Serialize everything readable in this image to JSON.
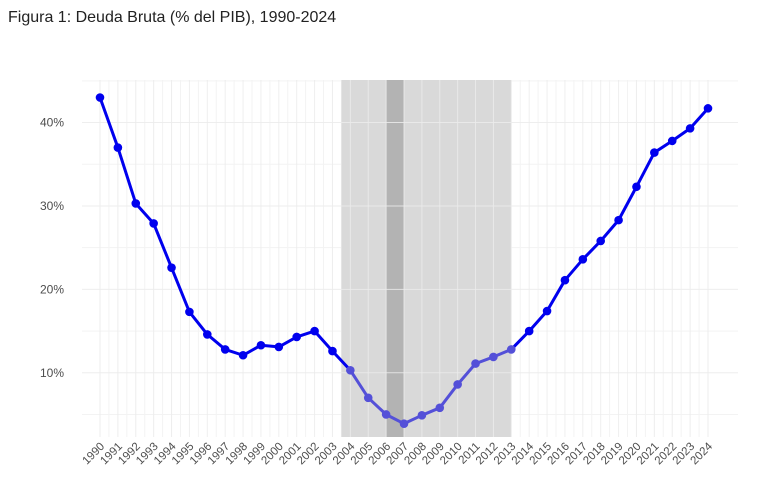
{
  "figure": {
    "title": "Figura 1: Deuda Bruta (% del PIB), 1990-2024"
  },
  "chart_data": {
    "type": "line",
    "title": "Figura 1: Deuda Bruta (% del PIB), 1990-2024",
    "xlabel": "",
    "ylabel": "",
    "x": [
      1990,
      1991,
      1992,
      1993,
      1994,
      1995,
      1996,
      1997,
      1998,
      1999,
      2000,
      2001,
      2002,
      2003,
      2004,
      2005,
      2006,
      2007,
      2008,
      2009,
      2010,
      2011,
      2012,
      2013,
      2014,
      2015,
      2016,
      2017,
      2018,
      2019,
      2020,
      2021,
      2022,
      2023,
      2024
    ],
    "series": [
      {
        "values": [
          43.0,
          37.0,
          30.3,
          27.9,
          22.6,
          17.3,
          14.6,
          12.8,
          12.1,
          13.3,
          13.1,
          14.3,
          15.0,
          12.6,
          10.3,
          7.0,
          5.0,
          3.9,
          4.9,
          5.8,
          8.6,
          11.1,
          11.9,
          12.8,
          15.0,
          17.4,
          21.1,
          23.6,
          25.8,
          28.3,
          32.3,
          36.4,
          37.8,
          39.3,
          41.7
        ]
      }
    ],
    "colors": {
      "line": "#0000ee",
      "line_highlight": "#5450d8",
      "band": "#d9d9d9",
      "band_dark": "#b3b3b3"
    },
    "shaded_ranges": [
      {
        "from": 2003.5,
        "to": 2013
      }
    ],
    "dark_band": {
      "from": 2006,
      "to": 2007
    },
    "highlight_range": [
      2004,
      2013
    ],
    "ylim": [
      2.3,
      45.1
    ],
    "yticks": [
      10,
      20,
      30,
      40
    ],
    "ytick_labels": [
      "10%",
      "20%",
      "30%",
      "40%"
    ],
    "grid": true,
    "legend": "none"
  }
}
